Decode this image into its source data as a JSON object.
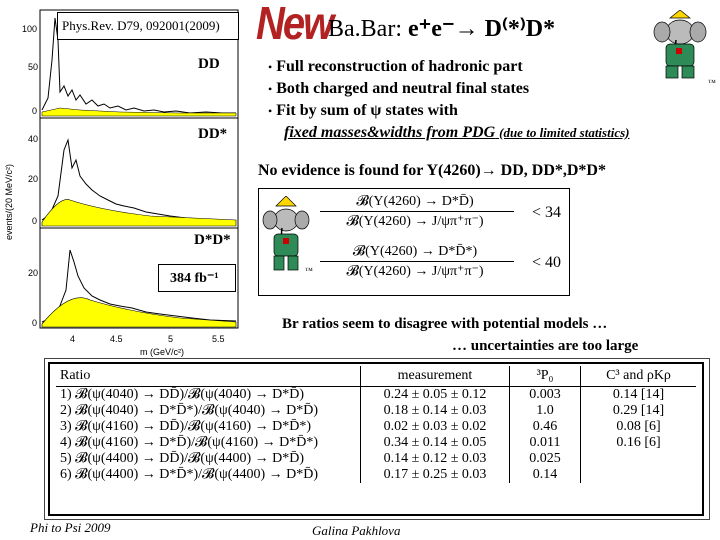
{
  "header": {
    "new_label": "New",
    "title_prefix": "Ba.Bar: ",
    "title_reaction": "e⁺e⁻→ D⁽*⁾D*"
  },
  "bullets": [
    "Full reconstruction of hadronic part",
    "Both charged and neutral final states",
    "Fit by sum of ψ states with",
    "fixed masses&widths from PDG"
  ],
  "bullet_note": "(due to limited statistics)",
  "no_evidence": "No evidence is found for Y(4260)→ DD, DD*,D*D*",
  "limits": [
    {
      "numerator": "𝓑(Y(4260) → D*D̄)",
      "denominator": "𝓑(Y(4260) → J/ψπ⁺π⁻)",
      "bound": "< 34"
    },
    {
      "numerator": "𝓑(Y(4260) → D*D̄*)",
      "denominator": "𝓑(Y(4260) → J/ψπ⁺π⁻)",
      "bound": "< 40"
    }
  ],
  "br_note_line1": "Br ratios seem to disagree with potential models …",
  "br_note_line2": "… uncertainties are too large",
  "plot": {
    "reference": "Phys.Rev. D79, 092001(2009)",
    "ylabel": "events/(20 MeV/c²)",
    "xlabel": "m (GeV/c²)",
    "panel_labels": [
      "DD",
      "DD*",
      "D*D*"
    ],
    "luminosity": "384 fb⁻¹",
    "yticks_top": [
      "100",
      "50",
      "0"
    ],
    "yticks_mid": [
      "40",
      "20",
      "0"
    ],
    "yticks_bot": [
      "20",
      "0"
    ],
    "xticks": [
      "4",
      "4.5",
      "5",
      "5.5"
    ]
  },
  "table": {
    "headers": [
      "Ratio",
      "measurement",
      "³P₀",
      "C³ and ρKρ"
    ],
    "rows": [
      {
        "ratio": "1)  𝓑(ψ(4040) → DD̄)/𝓑(ψ(4040) → D*D̄)",
        "meas": "0.24 ± 0.05 ± 0.12",
        "p0": "0.003",
        "c3": "0.14 [14]"
      },
      {
        "ratio": "2)  𝓑(ψ(4040) → D*D̄*)/𝓑(ψ(4040) → D*D̄)",
        "meas": "0.18 ± 0.14 ± 0.03",
        "p0": "1.0",
        "c3": "0.29 [14]"
      },
      {
        "ratio": "3)  𝓑(ψ(4160) → DD̄)/𝓑(ψ(4160) → D*D̄*)",
        "meas": "0.02 ± 0.03 ± 0.02",
        "p0": "0.46",
        "c3": "0.08 [6]"
      },
      {
        "ratio": "4)  𝓑(ψ(4160) → D*D̄)/𝓑(ψ(4160) → D*D̄*)",
        "meas": "0.34 ± 0.14 ± 0.05",
        "p0": "0.011",
        "c3": "0.16 [6]"
      },
      {
        "ratio": "5)  𝓑(ψ(4400) → DD̄)/𝓑(ψ(4400) → D*D̄)",
        "meas": "0.14 ± 0.12 ± 0.03",
        "p0": "0.025",
        "c3": ""
      },
      {
        "ratio": "6)  𝓑(ψ(4400) → D*D̄*)/𝓑(ψ(4400) → D*D̄)",
        "meas": "0.17 ± 0.25 ± 0.03",
        "p0": "0.14",
        "c3": ""
      }
    ]
  },
  "footer": {
    "left": "Phi to Psi 2009",
    "center": "Galina Pakhlova"
  },
  "mascot_tm": "™",
  "colors": {
    "new_red": "#b22222",
    "fit_yellow": "#ffff00",
    "mascot_green": "#2e8b57",
    "mascot_red": "#cc0000"
  }
}
